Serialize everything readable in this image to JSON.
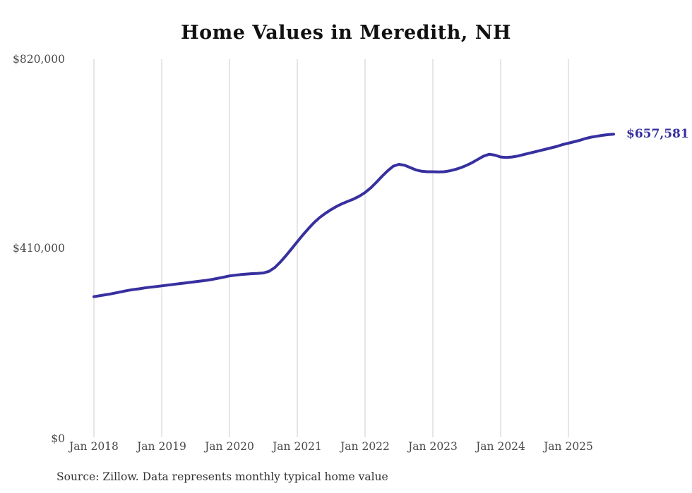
{
  "title": "Home Values in Meredith, NH",
  "end_label": "$657,581",
  "source_note": "Source: Zillow. Data represents monthly typical home value",
  "colors": {
    "line": "#37309f",
    "grid": "#cccccc",
    "axis_text": "#4a4a4a",
    "title_text": "#111111",
    "end_label_text": "#37309f",
    "background": "#ffffff"
  },
  "chart_data": {
    "type": "line",
    "title": "Home Values in Meredith, NH",
    "ylabel": "",
    "xlabel": "",
    "ylim": [
      0,
      820000
    ],
    "y_tick_labels": [
      "$820,000",
      "$410,000",
      "$0"
    ],
    "y_tick_values": [
      820000,
      410000,
      0
    ],
    "x_tick_labels": [
      "Jan 2018",
      "Jan 2019",
      "Jan 2020",
      "Jan 2021",
      "Jan 2022",
      "Jan 2023",
      "Jan 2024",
      "Jan 2025"
    ],
    "grid": "vertical-only",
    "legend": "none",
    "series_name": "Typical home value",
    "frequency": "monthly",
    "start_month": "Jan 2018",
    "end_month": "Sep 2025",
    "final_value": 657581,
    "values": [
      305000,
      307000,
      309000,
      311000,
      313500,
      316000,
      318500,
      320500,
      322000,
      324000,
      325500,
      327000,
      328500,
      330000,
      331500,
      333000,
      334500,
      336000,
      337500,
      339000,
      340500,
      342500,
      345000,
      347500,
      350000,
      351500,
      353000,
      354000,
      355000,
      355500,
      356500,
      360000,
      368000,
      380000,
      394000,
      409000,
      424000,
      439000,
      453000,
      466000,
      477000,
      486000,
      494000,
      501000,
      507000,
      512000,
      517000,
      523000,
      531000,
      541000,
      553000,
      566000,
      578000,
      588000,
      592000,
      590000,
      585000,
      580000,
      577000,
      576000,
      576000,
      575500,
      576000,
      578000,
      581000,
      585000,
      590000,
      596000,
      603000,
      610000,
      614000,
      612000,
      608000,
      607000,
      608000,
      610000,
      613000,
      616000,
      619000,
      622000,
      625000,
      628000,
      631000,
      635000,
      638000,
      641000,
      644000,
      648000,
      651000,
      653000,
      655000,
      656500,
      657581
    ]
  }
}
